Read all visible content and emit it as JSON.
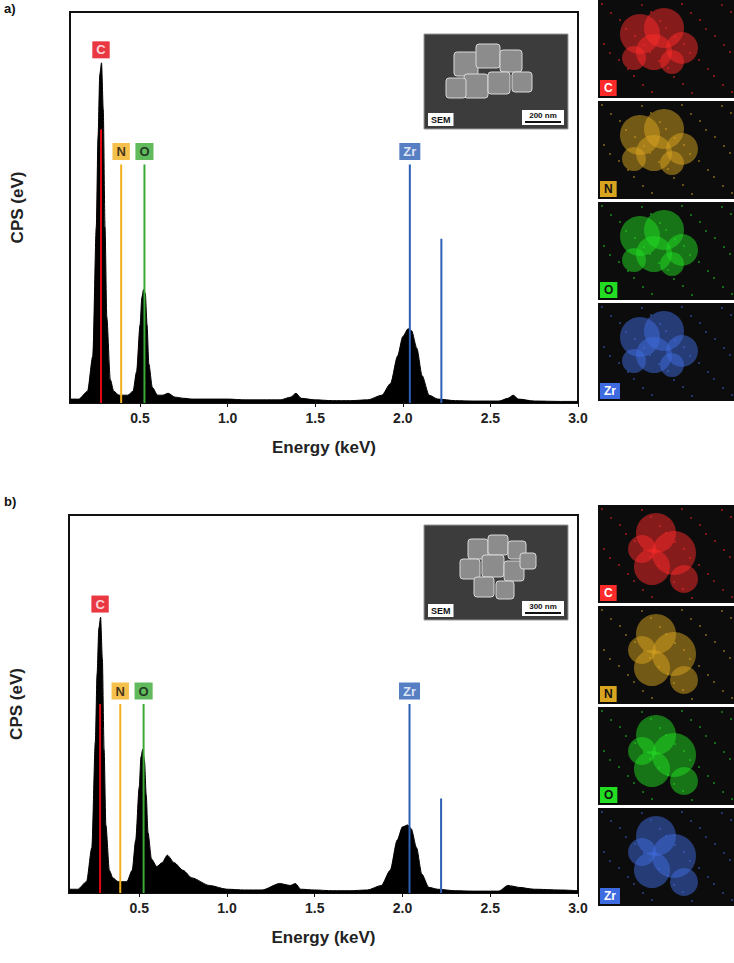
{
  "chart_data": [
    {
      "panel": "a)",
      "type": "area",
      "color": "#000000",
      "x_label": "Energy (keV)",
      "y_label": "CPS (eV)",
      "xlim": [
        0.1,
        3.0
      ],
      "xticks": [
        0.5,
        {
          "value": 1,
          "label": "1.0"
        },
        1.5,
        {
          "value": 2,
          "label": "2.0"
        },
        2.5,
        {
          "value": 3,
          "label": "3.0"
        }
      ],
      "ylim": [
        0,
        100
      ],
      "tick_labels": "x",
      "grid": false,
      "x": [
        0.1,
        0.15,
        0.2,
        0.23,
        0.25,
        0.26,
        0.27,
        0.28,
        0.29,
        0.3,
        0.31,
        0.33,
        0.35,
        0.38,
        0.4,
        0.43,
        0.46,
        0.48,
        0.5,
        0.51,
        0.52,
        0.53,
        0.54,
        0.55,
        0.57,
        0.6,
        0.63,
        0.66,
        0.7,
        0.75,
        0.8,
        0.9,
        1.0,
        1.1,
        1.2,
        1.3,
        1.36,
        1.39,
        1.42,
        1.5,
        1.6,
        1.7,
        1.8,
        1.88,
        1.93,
        1.97,
        2.0,
        2.03,
        2.05,
        2.08,
        2.11,
        2.15,
        2.2,
        2.3,
        2.4,
        2.55,
        2.6,
        2.63,
        2.66,
        2.75,
        2.9,
        3.0
      ],
      "values": [
        1,
        1,
        3,
        12,
        45,
        68,
        84,
        87,
        75,
        45,
        22,
        6,
        3,
        2,
        2,
        2,
        3,
        8,
        20,
        27,
        29,
        28,
        20,
        10,
        4,
        2,
        2,
        2.5,
        1.5,
        1.2,
        1,
        1,
        1,
        0.8,
        0.8,
        0.8,
        1.5,
        2.5,
        1.2,
        0.8,
        0.6,
        0.6,
        0.8,
        2,
        5,
        12,
        17,
        19,
        18.5,
        14,
        7,
        2,
        1,
        0.6,
        0.5,
        0.5,
        1.2,
        2,
        1,
        0.5,
        0.4,
        0.4
      ],
      "element_lines": [
        {
          "element": "C",
          "color": "#e30613",
          "lines": [
            {
              "energy": 0.277,
              "height": 70
            }
          ]
        },
        {
          "element": "N",
          "color": "#f2b01e",
          "lines": [
            {
              "energy": 0.392,
              "height": 61
            }
          ]
        },
        {
          "element": "O",
          "color": "#3aaa35",
          "lines": [
            {
              "energy": 0.525,
              "height": 61
            }
          ]
        },
        {
          "element": "Zr",
          "color": "#2d5fb5",
          "lines": [
            {
              "energy": 2.04,
              "height": 61
            },
            {
              "energy": 2.22,
              "height": 42
            }
          ]
        }
      ],
      "inset": {
        "label": "SEM",
        "scale_bar": "200 nm"
      },
      "maps": [
        {
          "element": "C",
          "color": "#ff2a2a"
        },
        {
          "element": "N",
          "color": "#d9a520"
        },
        {
          "element": "O",
          "color": "#22dd22"
        },
        {
          "element": "Zr",
          "color": "#3f6be0"
        }
      ]
    },
    {
      "panel": "b)",
      "type": "area",
      "color": "#000000",
      "x_label": "Energy (keV)",
      "y_label": "CPS (eV)",
      "xlim": [
        0.1,
        3.0
      ],
      "xticks": [
        0.5,
        {
          "value": 1,
          "label": "1.0"
        },
        1.5,
        {
          "value": 2,
          "label": "2.0"
        },
        2.5,
        {
          "value": 3,
          "label": "3.0"
        }
      ],
      "ylim": [
        0,
        100
      ],
      "tick_labels": "x",
      "grid": false,
      "x": [
        0.1,
        0.15,
        0.2,
        0.23,
        0.25,
        0.26,
        0.27,
        0.28,
        0.29,
        0.3,
        0.31,
        0.33,
        0.35,
        0.38,
        0.4,
        0.43,
        0.46,
        0.48,
        0.5,
        0.51,
        0.52,
        0.53,
        0.54,
        0.55,
        0.57,
        0.6,
        0.63,
        0.66,
        0.7,
        0.75,
        0.8,
        0.9,
        1.0,
        1.1,
        1.2,
        1.3,
        1.36,
        1.39,
        1.42,
        1.5,
        1.6,
        1.7,
        1.8,
        1.88,
        1.93,
        1.97,
        2.0,
        2.03,
        2.05,
        2.08,
        2.11,
        2.15,
        2.2,
        2.3,
        2.4,
        2.55,
        2.6,
        2.63,
        2.66,
        2.75,
        2.9,
        3.0
      ],
      "values": [
        1,
        1,
        3,
        12,
        40,
        58,
        70,
        73,
        62,
        38,
        18,
        6,
        4,
        3,
        3,
        3,
        6,
        14,
        28,
        36,
        38,
        35,
        26,
        16,
        9,
        7,
        8,
        10,
        8,
        6,
        4,
        2,
        1,
        0.8,
        0.8,
        2.5,
        2,
        2.5,
        1,
        0.8,
        0.6,
        0.6,
        0.8,
        2,
        6,
        14,
        17.5,
        18,
        17,
        12,
        5,
        1.5,
        1,
        0.6,
        0.5,
        0.5,
        2,
        1.8,
        1.5,
        1,
        0.8,
        0.6
      ],
      "element_lines": [
        {
          "element": "C",
          "color": "#e30613",
          "lines": [
            {
              "energy": 0.277,
              "height": 50
            }
          ]
        },
        {
          "element": "N",
          "color": "#f2b01e",
          "lines": [
            {
              "energy": 0.392,
              "height": 50
            }
          ]
        },
        {
          "element": "O",
          "color": "#3aaa35",
          "lines": [
            {
              "energy": 0.525,
              "height": 50
            }
          ]
        },
        {
          "element": "Zr",
          "color": "#2d5fb5",
          "lines": [
            {
              "energy": 2.04,
              "height": 50
            },
            {
              "energy": 2.22,
              "height": 25
            }
          ]
        }
      ],
      "inset": {
        "label": "SEM",
        "scale_bar": "300 nm"
      },
      "maps": [
        {
          "element": "C",
          "color": "#ff2a2a"
        },
        {
          "element": "N",
          "color": "#d9a520"
        },
        {
          "element": "O",
          "color": "#22dd22"
        },
        {
          "element": "Zr",
          "color": "#3f6be0"
        }
      ]
    }
  ]
}
